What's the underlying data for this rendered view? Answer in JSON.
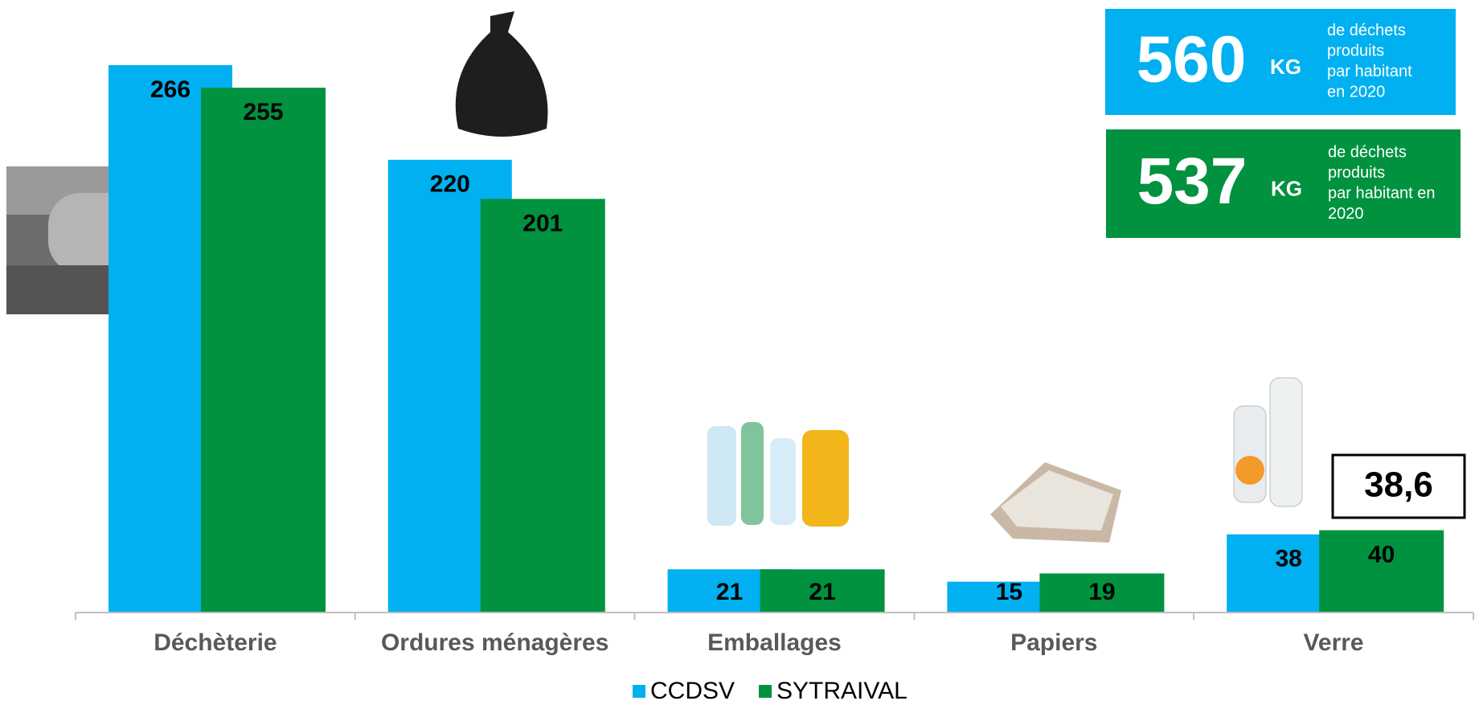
{
  "chart_data": {
    "type": "bar",
    "categories": [
      "Déchèterie",
      "Ordures ménagères",
      "Emballages",
      "Papiers",
      "Verre"
    ],
    "series": [
      {
        "name": "CCDSV",
        "color": "#00b0f0",
        "values": [
          266,
          220,
          21,
          15,
          38
        ]
      },
      {
        "name": "SYTRAIVAL",
        "color": "#00923f",
        "values": [
          255,
          201,
          21,
          19,
          40
        ]
      }
    ],
    "annotation": "38,6",
    "info_boxes": [
      {
        "value": "560",
        "unit": "KG",
        "lines": [
          "de déchets",
          "produits",
          "par habitant",
          "en 2020"
        ],
        "color": "#00b0f0"
      },
      {
        "value": "537",
        "unit": "KG",
        "lines": [
          "de déchets",
          "produits",
          "par habitant en",
          "2020"
        ],
        "color": "#00923f"
      }
    ]
  }
}
